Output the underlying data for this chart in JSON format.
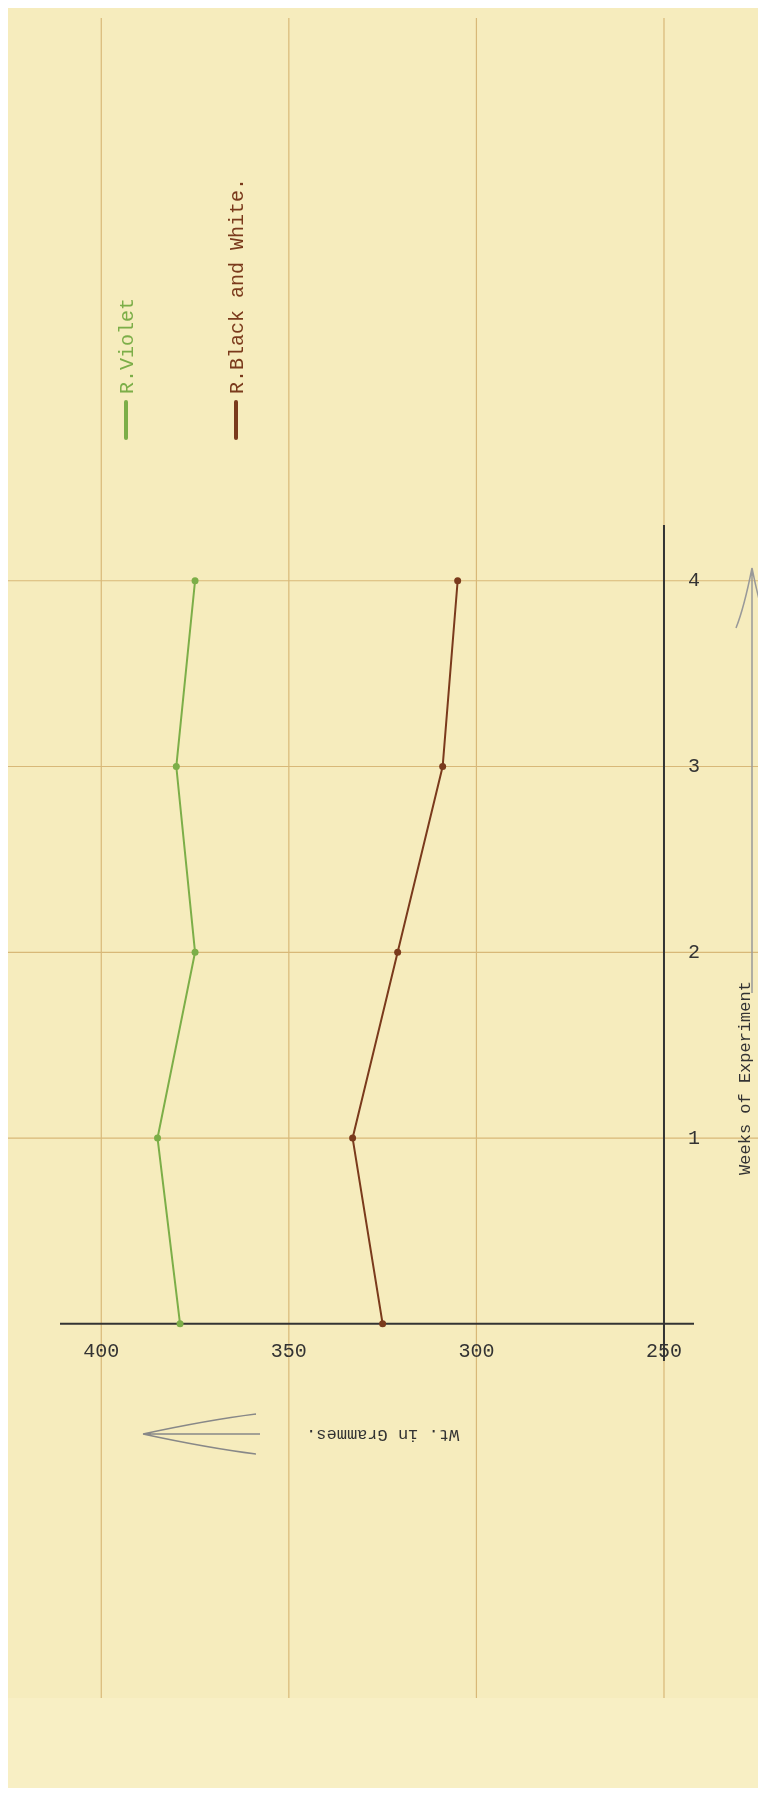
{
  "chart_data": {
    "type": "line",
    "xlabel": "Wt. in Grammes.",
    "ylabel": "Weeks of Experiment",
    "series": [
      {
        "name": "R.Violet",
        "color": "#7cae48",
        "x": [
          379,
          385,
          375,
          380,
          375
        ],
        "values": [
          0,
          1,
          2,
          3,
          4
        ]
      },
      {
        "name": "R.Black and White.",
        "color": "#7a3a1c",
        "x": [
          325,
          333,
          321,
          309,
          305
        ],
        "values": [
          0,
          1,
          2,
          3,
          4
        ]
      }
    ],
    "xlim": [
      411,
      242
    ],
    "xticks": [
      400,
      350,
      300,
      250
    ],
    "ylim": [
      -0.2,
      4.3
    ],
    "yticks": [
      1,
      2,
      3,
      4
    ],
    "grid": true,
    "legend": "top left",
    "marker": "circle",
    "line_style": "solid"
  }
}
